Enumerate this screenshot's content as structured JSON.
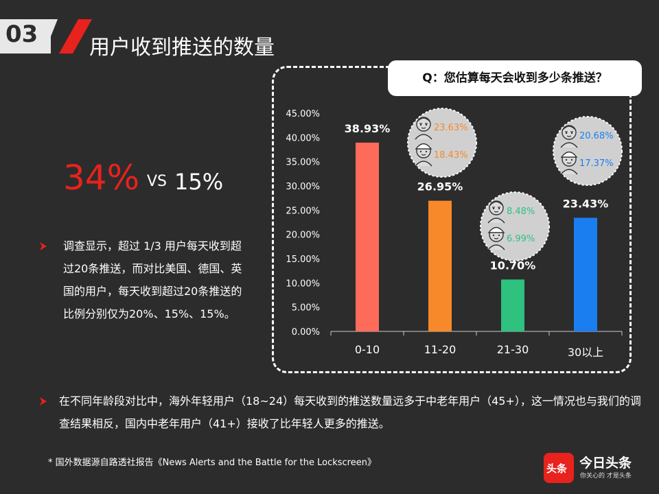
{
  "header": {
    "number": "03",
    "title": "用户收到推送的数量"
  },
  "stats": {
    "big": "34%",
    "vs": "VS",
    "small": "15%"
  },
  "left_paragraph": "调查显示，超过 1/3 用户每天收到超过20条推送，而对比美国、德国、英国的用户，每天收到超过20条推送的比例分别仅为20%、15%、15%。",
  "bottom_paragraph": "在不同年龄段对比中，海外年轻用户（18~24）每天收到的推送数量远多于中老年用户（45+），这一情况也与我们的调查结果相反，国内中老年用户（41+）接收了比年轻人更多的推送。",
  "footnote": "*  国外数据源自路透社报告《News Alerts  and the Battle for the Lockscreen》",
  "question": "Q：您估算每天会收到多少条推送？",
  "logo": {
    "box": "头条",
    "title": "今日头条",
    "subtitle": "你关心的 才是头条"
  },
  "bullet_icon": "chevron-right-icon",
  "chart_data": {
    "type": "bar",
    "categories": [
      "0-10",
      "11-20",
      "21-30",
      "30以上"
    ],
    "values": [
      38.93,
      26.95,
      10.7,
      23.43
    ],
    "value_labels": [
      "38.93%",
      "26.95%",
      "10.70%",
      "23.43%"
    ],
    "colors": [
      "#ff6b5b",
      "#f7892a",
      "#2ec27e",
      "#1a7ef0"
    ],
    "ylim": [
      0,
      45
    ],
    "yticks": [
      "0.00%",
      "5.00%",
      "10.00%",
      "15.00%",
      "20.00%",
      "25.00%",
      "30.00%",
      "35.00%",
      "40.00%",
      "45.00%"
    ],
    "ytick_values": [
      0,
      5,
      10,
      15,
      20,
      25,
      30,
      35,
      40,
      45
    ],
    "grid": false,
    "age_callouts": [
      {
        "category": "11-20",
        "older": "23.63%",
        "younger": "18.43%",
        "color": "#f7892a"
      },
      {
        "category": "21-30",
        "older": "8.48%",
        "younger": "6.99%",
        "color": "#2ec27e"
      },
      {
        "category": "30以上",
        "older": "20.68%",
        "younger": "17.37%",
        "color": "#1a7ef0"
      }
    ],
    "callout_icons": {
      "older": "elderly-person-icon",
      "younger": "young-person-icon"
    }
  }
}
